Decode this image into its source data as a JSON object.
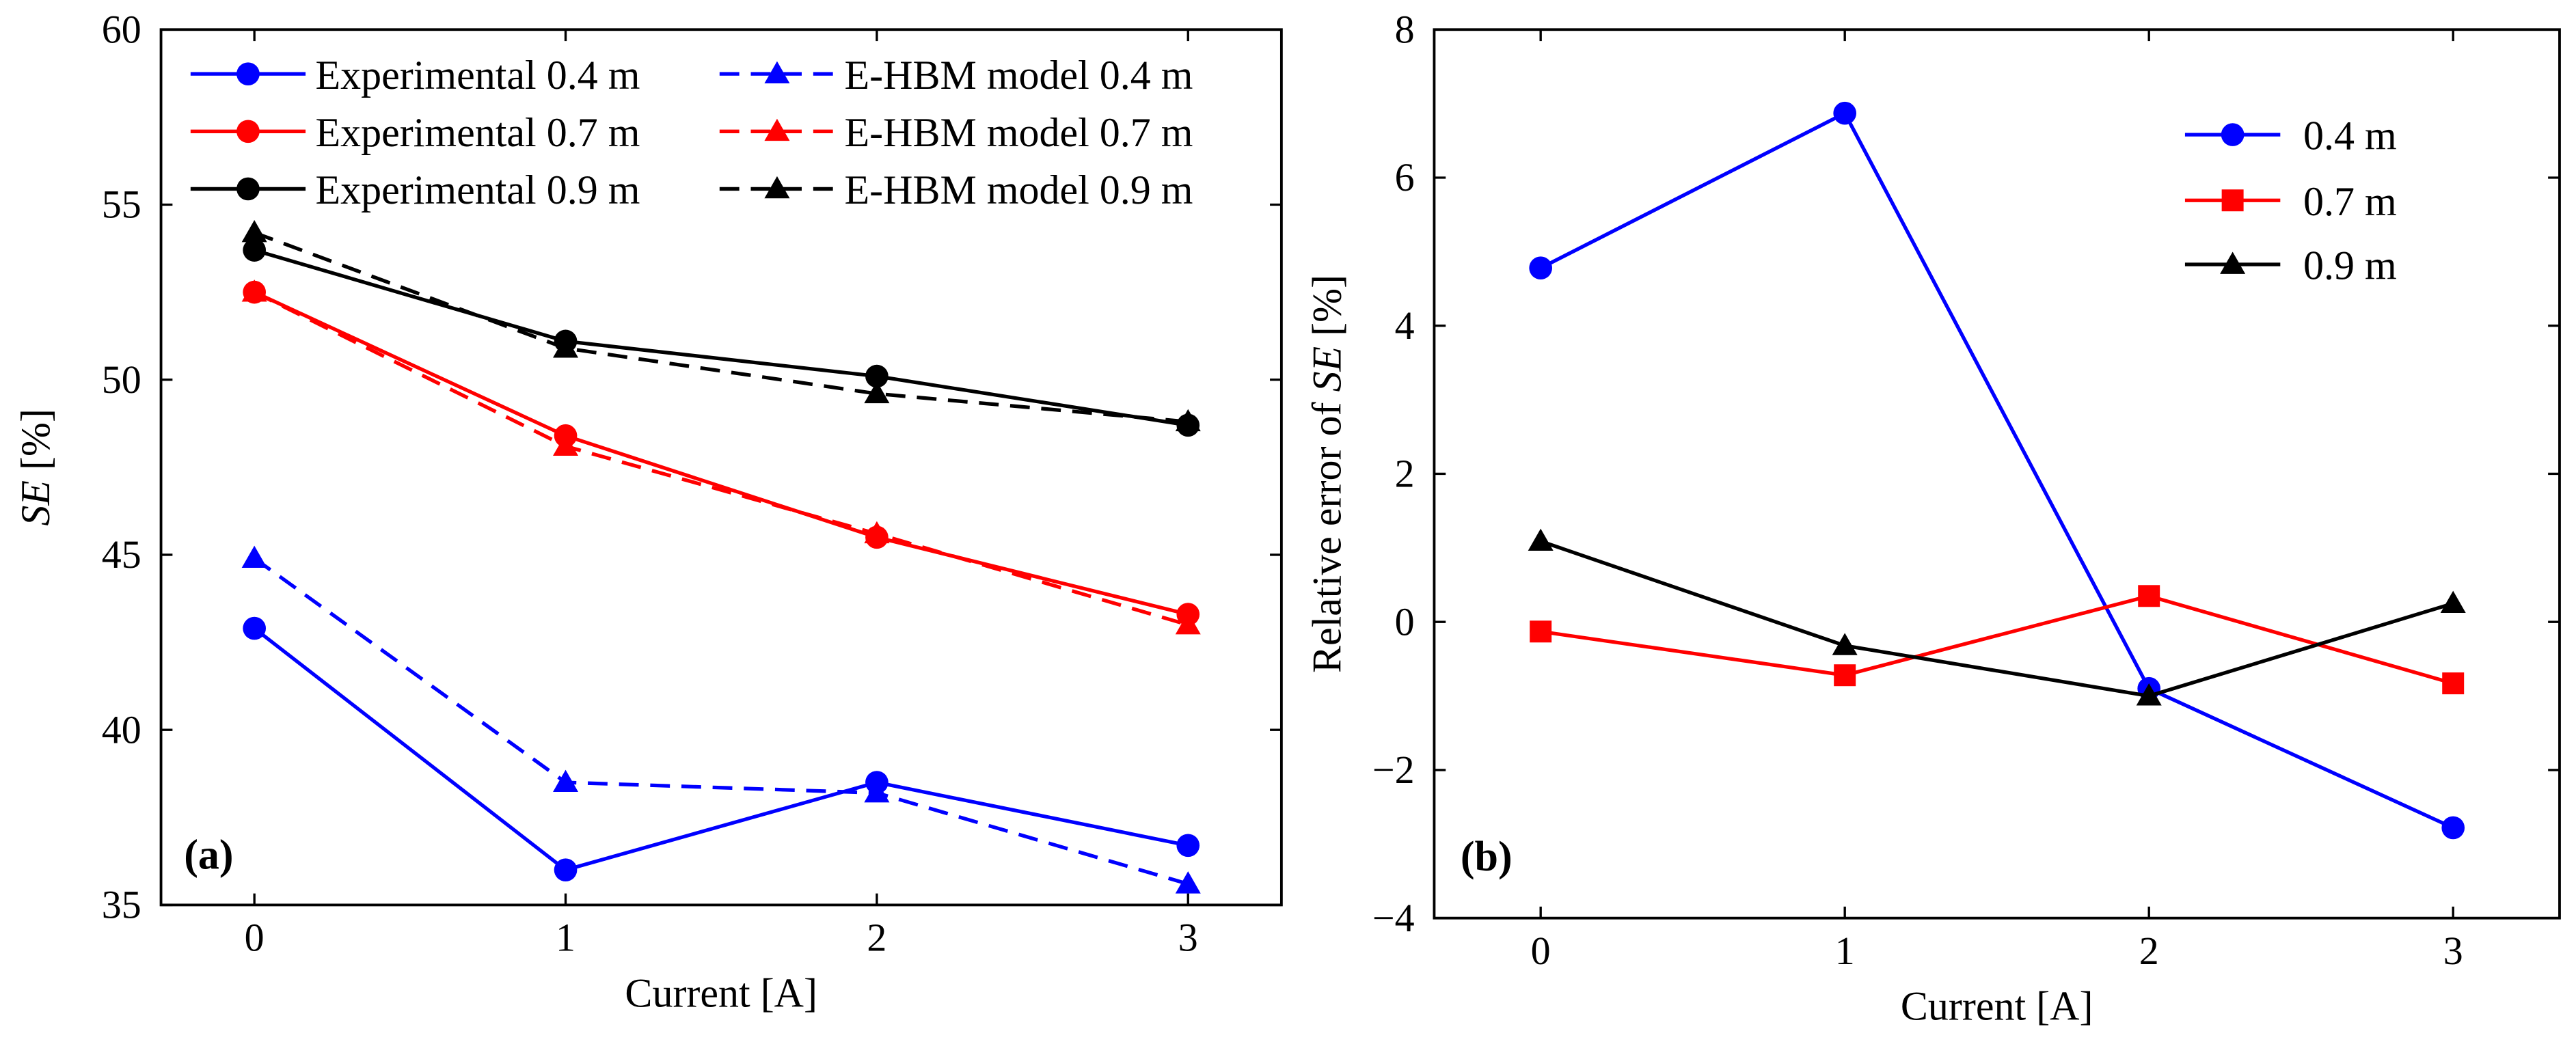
{
  "chart_data": [
    {
      "type": "line",
      "panel_label": "(a)",
      "xlabel": "Current [A]",
      "ylabel_italic": "SE",
      "ylabel_rest": " [%]",
      "xlim": [
        -0.3,
        3.3
      ],
      "ylim": [
        35,
        60
      ],
      "xticks": [
        0,
        1,
        2,
        3
      ],
      "yticks": [
        35,
        40,
        45,
        50,
        55,
        60
      ],
      "x": [
        0,
        1,
        2,
        3
      ],
      "legend_position": "top",
      "series": [
        {
          "name": "Experimental 0.4 m",
          "color": "#0000ff",
          "dash": "solid",
          "marker": "circle",
          "values": [
            42.9,
            36.0,
            38.5,
            36.7
          ]
        },
        {
          "name": "E-HBM model 0.4 m",
          "color": "#0000ff",
          "dash": "dashed",
          "marker": "triangle",
          "values": [
            44.9,
            38.5,
            38.2,
            35.6
          ]
        },
        {
          "name": "Experimental 0.7 m",
          "color": "#ff0000",
          "dash": "solid",
          "marker": "circle",
          "values": [
            52.5,
            48.4,
            45.5,
            43.3
          ]
        },
        {
          "name": "E-HBM model 0.7 m",
          "color": "#ff0000",
          "dash": "dashed",
          "marker": "triangle",
          "values": [
            52.5,
            48.1,
            45.6,
            43.0
          ]
        },
        {
          "name": "Experimental 0.9 m",
          "color": "#000000",
          "dash": "solid",
          "marker": "circle",
          "values": [
            53.7,
            51.1,
            50.1,
            48.7
          ]
        },
        {
          "name": "E-HBM model 0.9 m",
          "color": "#000000",
          "dash": "dashed",
          "marker": "triangle",
          "values": [
            54.2,
            50.9,
            49.6,
            48.8
          ]
        }
      ]
    },
    {
      "type": "line",
      "panel_label": "(b)",
      "xlabel": "Current [A]",
      "ylabel_prefix": "Relative error of ",
      "ylabel_italic": "SE",
      "ylabel_rest": " [%]",
      "xlim": [
        -0.35,
        3.35
      ],
      "ylim": [
        -4,
        8
      ],
      "xticks": [
        0,
        1,
        2,
        3
      ],
      "yticks": [
        -4,
        -2,
        0,
        2,
        4,
        6,
        8
      ],
      "x": [
        0,
        1,
        2,
        3
      ],
      "legend_position": "top-right",
      "series": [
        {
          "name": "0.4 m",
          "color": "#0000ff",
          "dash": "solid",
          "marker": "circle",
          "values": [
            4.78,
            6.87,
            -0.9,
            -2.78
          ]
        },
        {
          "name": "0.7 m",
          "color": "#ff0000",
          "dash": "solid",
          "marker": "square",
          "values": [
            -0.13,
            -0.72,
            0.35,
            -0.83
          ]
        },
        {
          "name": "0.9 m",
          "color": "#000000",
          "dash": "solid",
          "marker": "triangle",
          "values": [
            1.09,
            -0.32,
            -1.0,
            0.25
          ]
        }
      ]
    }
  ]
}
